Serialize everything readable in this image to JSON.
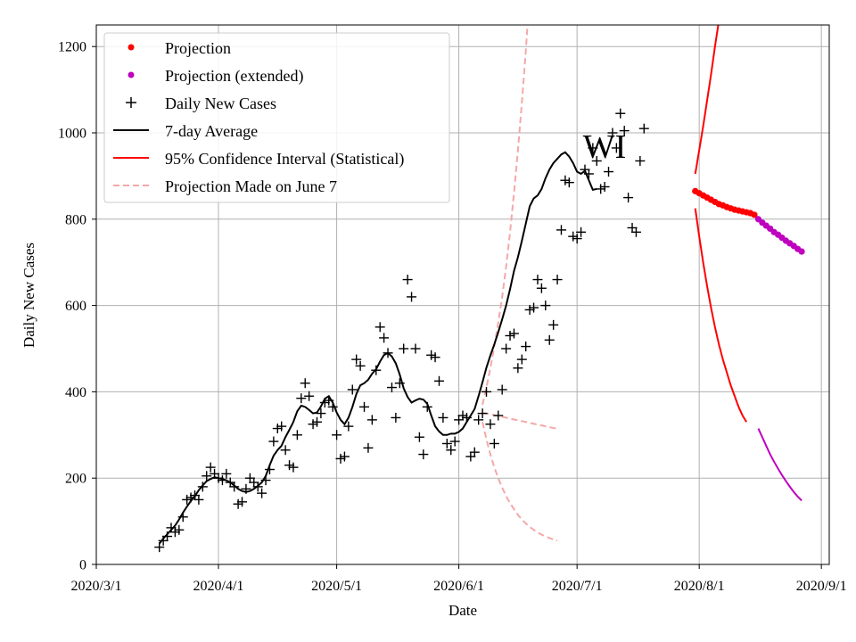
{
  "chart_data": {
    "type": "line",
    "state_label": "WI",
    "xlabel": "Date",
    "ylabel": "Daily New Cases",
    "xlim": [
      "2020-03-01",
      "2020-09-03"
    ],
    "ylim": [
      0,
      1250
    ],
    "x_ticks": [
      {
        "date": "2020-03-01",
        "label": "2020/3/1"
      },
      {
        "date": "2020-04-01",
        "label": "2020/4/1"
      },
      {
        "date": "2020-05-01",
        "label": "2020/5/1"
      },
      {
        "date": "2020-06-01",
        "label": "2020/6/1"
      },
      {
        "date": "2020-07-01",
        "label": "2020/7/1"
      },
      {
        "date": "2020-08-01",
        "label": "2020/8/1"
      },
      {
        "date": "2020-09-01",
        "label": "2020/9/1"
      }
    ],
    "y_ticks": [
      0,
      200,
      400,
      600,
      800,
      1000,
      1200
    ],
    "legend": [
      {
        "key": "projection",
        "label": "Projection",
        "marker": "dot",
        "color": "#ff0000"
      },
      {
        "key": "projection_ext",
        "label": "Projection (extended)",
        "marker": "dot",
        "color": "#bf00bf"
      },
      {
        "key": "daily",
        "label": "Daily New Cases",
        "marker": "plus",
        "color": "#000000"
      },
      {
        "key": "avg",
        "label": "7-day Average",
        "marker": "line",
        "color": "#000000"
      },
      {
        "key": "ci",
        "label": "95% Confidence Interval (Statistical)",
        "marker": "line",
        "color": "#ff0000"
      },
      {
        "key": "june7",
        "label": "Projection Made on June 7",
        "marker": "dash",
        "color": "#f4a8a8"
      }
    ],
    "series": {
      "daily_new_cases": {
        "start_date": "2020-03-17",
        "values": [
          40,
          55,
          65,
          85,
          75,
          80,
          110,
          150,
          155,
          160,
          150,
          180,
          205,
          225,
          210,
          200,
          195,
          210,
          190,
          180,
          140,
          145,
          175,
          200,
          190,
          180,
          165,
          195,
          220,
          285,
          315,
          320,
          265,
          230,
          225,
          300,
          385,
          420,
          390,
          325,
          330,
          350,
          375,
          380,
          365,
          300,
          245,
          250,
          320,
          405,
          475,
          460,
          365,
          270,
          335,
          450,
          550,
          525,
          490,
          410,
          340,
          420,
          500,
          660,
          620,
          500,
          295,
          255,
          365,
          485,
          480,
          425,
          340,
          280,
          265,
          285,
          335,
          345,
          340,
          250,
          260,
          335,
          350,
          400,
          325,
          280,
          345,
          405,
          500,
          530,
          535,
          455,
          475,
          505,
          590,
          595,
          660,
          640,
          600,
          520,
          555,
          660,
          775,
          890,
          885,
          760,
          755,
          770,
          915,
          905,
          965,
          935,
          870,
          875,
          910,
          1000,
          965,
          1045,
          1005,
          850,
          780,
          770,
          935,
          1010
        ]
      },
      "seven_day_average": {
        "start_date": "2020-03-17",
        "values": [
          48,
          60,
          70,
          80,
          90,
          104,
          120,
          134,
          147,
          158,
          172,
          183,
          193,
          198,
          202,
          200,
          198,
          195,
          190,
          183,
          175,
          170,
          168,
          170,
          175,
          182,
          190,
          205,
          230,
          252,
          265,
          275,
          295,
          312,
          330,
          355,
          368,
          365,
          358,
          350,
          352,
          366,
          384,
          390,
          375,
          352,
          335,
          325,
          340,
          365,
          395,
          415,
          420,
          428,
          442,
          452,
          470,
          485,
          490,
          482,
          466,
          440,
          408,
          388,
          375,
          380,
          384,
          382,
          372,
          345,
          320,
          308,
          300,
          300,
          303,
          303,
          307,
          315,
          330,
          345,
          360,
          390,
          422,
          456,
          484,
          510,
          538,
          568,
          600,
          638,
          680,
          712,
          750,
          790,
          830,
          848,
          855,
          870,
          895,
          915,
          930,
          940,
          950,
          955,
          945,
          930,
          910,
          905,
          912,
          890,
          868,
          870
        ]
      },
      "projection": {
        "start_date": "2020-07-31",
        "values": [
          865,
          860,
          855,
          850,
          845,
          840,
          835,
          832,
          828,
          825,
          822,
          820,
          818,
          816,
          814,
          810
        ]
      },
      "projection_extended": {
        "start_date": "2020-08-16",
        "values": [
          800,
          792,
          785,
          778,
          770,
          764,
          757,
          750,
          744,
          738,
          731,
          725
        ]
      },
      "ci_upper": {
        "start_date": "2020-07-31",
        "values": [
          905,
          960,
          1015,
          1075,
          1135,
          1200,
          1260
        ]
      },
      "ci_lower": {
        "start_date": "2020-07-31",
        "values": [
          825,
          760,
          700,
          645,
          595,
          550,
          510,
          475,
          445,
          415,
          390,
          365,
          345,
          330
        ]
      },
      "ci_lower_extended": {
        "start_date": "2020-08-16",
        "values": [
          315,
          295,
          275,
          255,
          238,
          222,
          207,
          193,
          180,
          168,
          157,
          148
        ]
      },
      "june7_upper": {
        "start_date": "2020-06-07",
        "values": [
          370,
          410,
          455,
          505,
          560,
          620,
          690,
          770,
          860,
          960,
          1070,
          1190,
          1330
        ]
      },
      "june7_mid": {
        "start_date": "2020-06-07",
        "values": [
          350,
          350,
          348,
          346,
          344,
          342,
          340,
          338,
          336,
          334,
          332,
          330,
          328,
          326,
          324,
          322,
          320,
          318,
          316,
          315
        ]
      },
      "june7_lower": {
        "start_date": "2020-06-07",
        "values": [
          330,
          290,
          255,
          225,
          200,
          178,
          158,
          142,
          128,
          115,
          104,
          95,
          87,
          80,
          74,
          69,
          65,
          61,
          58,
          55
        ]
      }
    }
  }
}
